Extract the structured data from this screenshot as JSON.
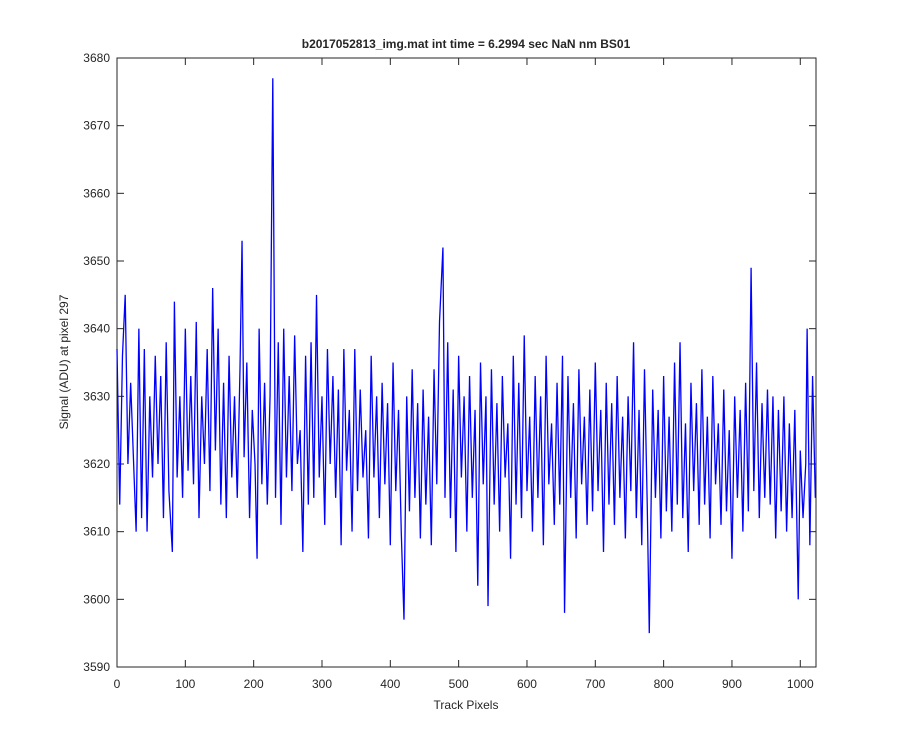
{
  "chart_data": {
    "type": "line",
    "title": "b2017052813_img.mat int time = 6.2994 sec  NaN nm BS01",
    "x_label": "Track Pixels",
    "y_label": "Signal (ADU) at pixel 297",
    "xlim": [
      0,
      1023
    ],
    "ylim": [
      3590,
      3680
    ],
    "xticks": [
      0,
      100,
      200,
      300,
      400,
      500,
      600,
      700,
      800,
      900,
      1000
    ],
    "yticks": [
      3590,
      3600,
      3610,
      3620,
      3630,
      3640,
      3650,
      3660,
      3670,
      3680
    ],
    "series": [
      {
        "color": "#0000ff",
        "x": [
          0,
          4,
          8,
          12,
          16,
          20,
          24,
          28,
          32,
          36,
          40,
          44,
          48,
          52,
          56,
          60,
          64,
          68,
          72,
          76,
          81,
          84,
          88,
          92,
          96,
          100,
          104,
          108,
          112,
          116,
          120,
          124,
          128,
          132,
          136,
          140,
          144,
          148,
          152,
          156,
          160,
          164,
          168,
          172,
          176,
          180,
          183,
          186,
          190,
          194,
          198,
          202,
          205,
          208,
          212,
          216,
          220,
          224,
          228,
          232,
          236,
          240,
          244,
          248,
          252,
          256,
          260,
          264,
          268,
          272,
          276,
          280,
          284,
          288,
          292,
          296,
          300,
          304,
          308,
          312,
          316,
          320,
          324,
          328,
          332,
          336,
          340,
          344,
          348,
          352,
          356,
          360,
          364,
          368,
          372,
          376,
          380,
          384,
          388,
          392,
          396,
          400,
          404,
          408,
          412,
          416,
          420,
          424,
          428,
          432,
          436,
          440,
          444,
          448,
          452,
          456,
          460,
          464,
          468,
          472,
          477,
          480,
          484,
          488,
          492,
          496,
          500,
          504,
          508,
          512,
          516,
          520,
          524,
          528,
          532,
          536,
          540,
          543,
          548,
          552,
          556,
          560,
          564,
          568,
          572,
          576,
          580,
          584,
          588,
          592,
          596,
          600,
          604,
          608,
          612,
          616,
          620,
          624,
          628,
          632,
          636,
          640,
          644,
          648,
          652,
          655,
          660,
          664,
          668,
          672,
          676,
          680,
          684,
          688,
          692,
          696,
          700,
          704,
          708,
          712,
          716,
          720,
          724,
          728,
          732,
          736,
          740,
          744,
          748,
          752,
          756,
          760,
          764,
          768,
          772,
          776,
          779,
          784,
          788,
          792,
          796,
          800,
          804,
          808,
          812,
          816,
          820,
          824,
          828,
          832,
          836,
          840,
          844,
          848,
          852,
          856,
          860,
          864,
          868,
          872,
          876,
          880,
          884,
          888,
          892,
          896,
          900,
          904,
          908,
          912,
          916,
          920,
          924,
          928,
          932,
          936,
          940,
          944,
          948,
          952,
          956,
          960,
          964,
          968,
          972,
          976,
          980,
          984,
          988,
          992,
          997,
          1000,
          1004,
          1008,
          1010,
          1014,
          1018,
          1022
        ],
        "values": [
          3637,
          3614,
          3636,
          3645,
          3620,
          3632,
          3621,
          3610,
          3640,
          3612,
          3637,
          3610,
          3630,
          3618,
          3636,
          3620,
          3633,
          3612,
          3638,
          3616,
          3607,
          3644,
          3618,
          3630,
          3615,
          3640,
          3619,
          3633,
          3617,
          3641,
          3612,
          3630,
          3620,
          3637,
          3616,
          3646,
          3622,
          3640,
          3614,
          3632,
          3612,
          3636,
          3618,
          3630,
          3615,
          3634,
          3653,
          3621,
          3635,
          3612,
          3628,
          3620,
          3606,
          3640,
          3617,
          3632,
          3614,
          3630,
          3677,
          3615,
          3638,
          3611,
          3640,
          3618,
          3633,
          3616,
          3639,
          3620,
          3625,
          3607,
          3636,
          3614,
          3638,
          3615,
          3645,
          3618,
          3630,
          3611,
          3637,
          3620,
          3633,
          3615,
          3631,
          3608,
          3637,
          3619,
          3628,
          3610,
          3637,
          3616,
          3631,
          3618,
          3625,
          3609,
          3636,
          3618,
          3630,
          3612,
          3632,
          3617,
          3629,
          3608,
          3635,
          3616,
          3628,
          3610,
          3597,
          3630,
          3613,
          3634,
          3615,
          3629,
          3609,
          3631,
          3614,
          3627,
          3608,
          3634,
          3617,
          3641,
          3652,
          3615,
          3638,
          3612,
          3631,
          3607,
          3636,
          3618,
          3630,
          3610,
          3633,
          3615,
          3628,
          3602,
          3635,
          3617,
          3630,
          3599,
          3634,
          3614,
          3629,
          3610,
          3633,
          3618,
          3626,
          3606,
          3636,
          3614,
          3632,
          3612,
          3639,
          3616,
          3627,
          3610,
          3633,
          3615,
          3630,
          3608,
          3636,
          3617,
          3626,
          3611,
          3632,
          3614,
          3636,
          3598,
          3633,
          3615,
          3629,
          3609,
          3634,
          3617,
          3627,
          3611,
          3631,
          3613,
          3635,
          3616,
          3628,
          3607,
          3632,
          3614,
          3629,
          3611,
          3633,
          3615,
          3627,
          3609,
          3630,
          3616,
          3638,
          3612,
          3628,
          3608,
          3634,
          3614,
          3595,
          3631,
          3615,
          3628,
          3609,
          3633,
          3613,
          3627,
          3610,
          3635,
          3614,
          3638,
          3612,
          3626,
          3607,
          3632,
          3616,
          3629,
          3611,
          3634,
          3614,
          3627,
          3609,
          3633,
          3617,
          3626,
          3611,
          3631,
          3613,
          3625,
          3606,
          3630,
          3615,
          3628,
          3610,
          3632,
          3613,
          3649,
          3616,
          3635,
          3612,
          3629,
          3615,
          3631,
          3614,
          3630,
          3609,
          3628,
          3613,
          3630,
          3610,
          3626,
          3612,
          3628,
          3600,
          3622,
          3612,
          3620,
          3640,
          3608,
          3633,
          3615
        ]
      }
    ]
  }
}
